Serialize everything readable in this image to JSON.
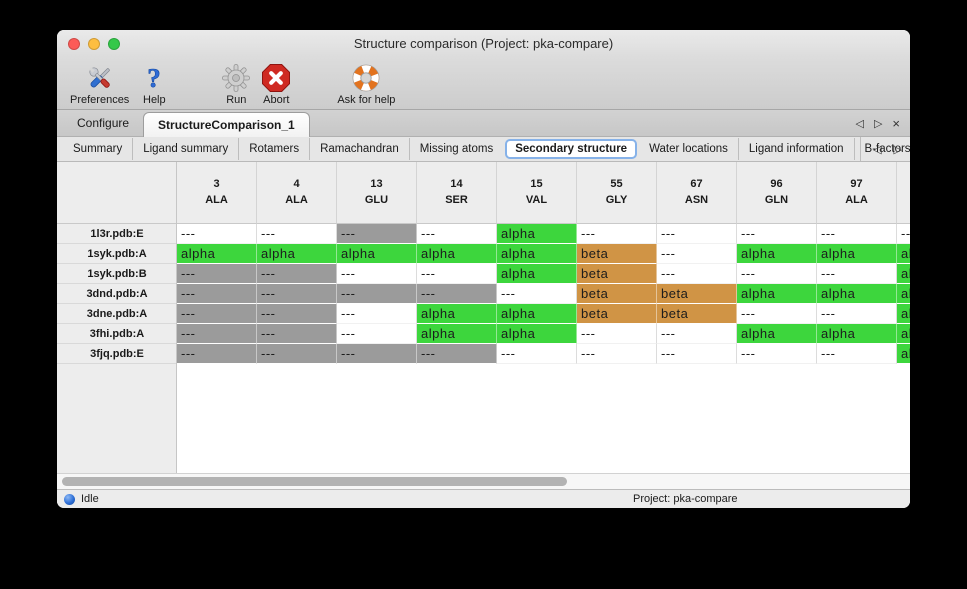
{
  "window": {
    "title": "Structure comparison (Project: pka-compare)"
  },
  "traffic_lights": [
    {
      "name": "close",
      "color": "#fc5b57"
    },
    {
      "name": "minimize",
      "color": "#fdbe41"
    },
    {
      "name": "zoom",
      "color": "#34c84a"
    }
  ],
  "toolbar": {
    "items": [
      {
        "label": "Preferences",
        "icon": "tools-icon"
      },
      {
        "label": "Help",
        "icon": "question-mark-icon"
      },
      {
        "label": "Run",
        "icon": "gear-icon"
      },
      {
        "label": "Abort",
        "icon": "abort-icon"
      },
      {
        "label": "Ask for help",
        "icon": "lifebuoy-icon"
      }
    ]
  },
  "tabs_primary": {
    "items": [
      {
        "label": "Configure",
        "selected": false
      },
      {
        "label": "StructureComparison_1",
        "selected": true
      }
    ]
  },
  "tabs_secondary": {
    "items": [
      "Summary",
      "Ligand summary",
      "Rotamers",
      "Ramachandran",
      "Missing atoms",
      "Secondary structure",
      "Water locations",
      "Ligand information",
      "B-factors"
    ],
    "selected": "Secondary structure"
  },
  "tab_controls": {
    "prev": "◁",
    "next": "▷",
    "close": "×"
  },
  "table": {
    "columns": [
      {
        "number": "3",
        "residue": "ALA"
      },
      {
        "number": "4",
        "residue": "ALA"
      },
      {
        "number": "13",
        "residue": "GLU"
      },
      {
        "number": "14",
        "residue": "SER"
      },
      {
        "number": "15",
        "residue": "VAL"
      },
      {
        "number": "55",
        "residue": "GLY"
      },
      {
        "number": "67",
        "residue": "ASN"
      },
      {
        "number": "96",
        "residue": "GLN"
      },
      {
        "number": "97",
        "residue": "ALA"
      },
      {
        "number": "",
        "residue": ""
      }
    ],
    "cell_colors": {
      "alpha": "#3dd63d",
      "beta": "#d09445",
      "absent": "#9b9b9b",
      "none": "#ffffff"
    },
    "rows": [
      {
        "label": "1l3r.pdb:E",
        "cells": [
          [
            "---",
            "none"
          ],
          [
            "---",
            "none"
          ],
          [
            "---",
            "absent"
          ],
          [
            "---",
            "none"
          ],
          [
            "alpha",
            "alpha"
          ],
          [
            "---",
            "none"
          ],
          [
            "---",
            "none"
          ],
          [
            "---",
            "none"
          ],
          [
            "---",
            "none"
          ],
          [
            "---",
            "none"
          ]
        ]
      },
      {
        "label": "1syk.pdb:A",
        "cells": [
          [
            "alpha",
            "alpha"
          ],
          [
            "alpha",
            "alpha"
          ],
          [
            "alpha",
            "alpha"
          ],
          [
            "alpha",
            "alpha"
          ],
          [
            "alpha",
            "alpha"
          ],
          [
            "beta",
            "beta"
          ],
          [
            "---",
            "none"
          ],
          [
            "alpha",
            "alpha"
          ],
          [
            "alpha",
            "alpha"
          ],
          [
            "alpha",
            "alpha"
          ]
        ]
      },
      {
        "label": "1syk.pdb:B",
        "cells": [
          [
            "---",
            "absent"
          ],
          [
            "---",
            "absent"
          ],
          [
            "---",
            "none"
          ],
          [
            "---",
            "none"
          ],
          [
            "alpha",
            "alpha"
          ],
          [
            "beta",
            "beta"
          ],
          [
            "---",
            "none"
          ],
          [
            "---",
            "none"
          ],
          [
            "---",
            "none"
          ],
          [
            "alpha",
            "alpha"
          ]
        ]
      },
      {
        "label": "3dnd.pdb:A",
        "cells": [
          [
            "---",
            "absent"
          ],
          [
            "---",
            "absent"
          ],
          [
            "---",
            "absent"
          ],
          [
            "---",
            "absent"
          ],
          [
            "---",
            "none"
          ],
          [
            "beta",
            "beta"
          ],
          [
            "beta",
            "beta"
          ],
          [
            "alpha",
            "alpha"
          ],
          [
            "alpha",
            "alpha"
          ],
          [
            "alpha",
            "alpha"
          ]
        ]
      },
      {
        "label": "3dne.pdb:A",
        "cells": [
          [
            "---",
            "absent"
          ],
          [
            "---",
            "absent"
          ],
          [
            "---",
            "none"
          ],
          [
            "alpha",
            "alpha"
          ],
          [
            "alpha",
            "alpha"
          ],
          [
            "beta",
            "beta"
          ],
          [
            "beta",
            "beta"
          ],
          [
            "---",
            "none"
          ],
          [
            "---",
            "none"
          ],
          [
            "alpha",
            "alpha"
          ]
        ]
      },
      {
        "label": "3fhi.pdb:A",
        "cells": [
          [
            "---",
            "absent"
          ],
          [
            "---",
            "absent"
          ],
          [
            "---",
            "none"
          ],
          [
            "alpha",
            "alpha"
          ],
          [
            "alpha",
            "alpha"
          ],
          [
            "---",
            "none"
          ],
          [
            "---",
            "none"
          ],
          [
            "alpha",
            "alpha"
          ],
          [
            "alpha",
            "alpha"
          ],
          [
            "alpha",
            "alpha"
          ]
        ]
      },
      {
        "label": "3fjq.pdb:E",
        "cells": [
          [
            "---",
            "absent"
          ],
          [
            "---",
            "absent"
          ],
          [
            "---",
            "absent"
          ],
          [
            "---",
            "absent"
          ],
          [
            "---",
            "none"
          ],
          [
            "---",
            "none"
          ],
          [
            "---",
            "none"
          ],
          [
            "---",
            "none"
          ],
          [
            "---",
            "none"
          ],
          [
            "alpha",
            "alpha"
          ]
        ]
      }
    ]
  },
  "statusbar": {
    "status": "Idle",
    "project": "Project: pka-compare"
  }
}
